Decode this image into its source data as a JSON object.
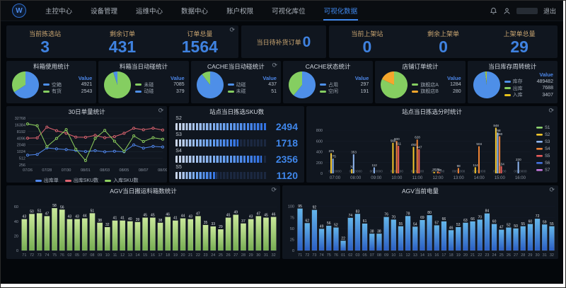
{
  "nav": {
    "items": [
      "主控中心",
      "设备管理",
      "运维中心",
      "数据中心",
      "账户权限",
      "可视化库位",
      "可视化数据"
    ],
    "active_index": 6,
    "logout_label": "退出"
  },
  "icons": {
    "refresh": "⟳"
  },
  "stats": {
    "picking": {
      "items": [
        {
          "label": "当前拣选站",
          "value": "3"
        },
        {
          "label": "剩余订单",
          "value": "431"
        },
        {
          "label": "订单总量",
          "value": "1564"
        }
      ]
    },
    "replenish": {
      "label": "当日待补货订单",
      "value": "0"
    },
    "shelving": {
      "items": [
        {
          "label": "当前上架站",
          "value": "0"
        },
        {
          "label": "剩余上架单",
          "value": "0"
        },
        {
          "label": "上架单总量",
          "value": "29"
        }
      ]
    }
  },
  "chart_data": [
    {
      "type": "pie",
      "title": "料箱使用统计",
      "value_header": "Value",
      "slices": [
        {
          "label": "空箱",
          "value": 4921,
          "color": "#4e8fe8"
        },
        {
          "label": "有货",
          "value": 2543,
          "color": "#85ce61"
        }
      ]
    },
    {
      "type": "pie",
      "title": "料箱当日动碰统计",
      "value_header": "Value",
      "slices": [
        {
          "label": "未碰",
          "value": 7085,
          "color": "#85ce61"
        },
        {
          "label": "动碰",
          "value": 379,
          "color": "#4e8fe8"
        }
      ]
    },
    {
      "type": "pie",
      "title": "CACHE当日动碰统计",
      "value_header": "Value",
      "has_refresh": true,
      "slices": [
        {
          "label": "动碰",
          "value": 437,
          "color": "#4e8fe8"
        },
        {
          "label": "未碰",
          "value": 51,
          "color": "#85ce61"
        }
      ]
    },
    {
      "type": "pie",
      "title": "CACHE状态统计",
      "value_header": "Value",
      "slices": [
        {
          "label": "占用",
          "value": 297,
          "color": "#4e8fe8"
        },
        {
          "label": "空闲",
          "value": 191,
          "color": "#85ce61"
        }
      ]
    },
    {
      "type": "pie",
      "title": "店铺订单统计",
      "value_header": "Value",
      "slices": [
        {
          "label": "旗舰店A",
          "value": 1284,
          "color": "#85ce61"
        },
        {
          "label": "旗舰店B",
          "value": 280,
          "color": "#f5a62c"
        }
      ]
    },
    {
      "type": "pie",
      "title": "当日库存周转统计",
      "value_header": "Value",
      "slices": [
        {
          "label": "库存",
          "value": 489482,
          "color": "#4e8fe8"
        },
        {
          "label": "出库",
          "value": 7688,
          "color": "#85ce61"
        },
        {
          "label": "入库",
          "value": 3407,
          "color": "#e8c21a"
        }
      ]
    },
    {
      "type": "line",
      "title": "30日单量统计",
      "scale": "log2",
      "y_ticks": [
        256,
        512,
        1024,
        2048,
        4096,
        8192,
        16384,
        32768
      ],
      "x": [
        "07/26",
        "07/27",
        "07/28",
        "07/29",
        "07/30",
        "07/31",
        "08/01",
        "08/02",
        "08/03",
        "08/04",
        "08/05",
        "08/06",
        "08/07",
        "08/08",
        "08/09"
      ],
      "x_tick_every": 2,
      "series": [
        {
          "name": "出库单",
          "color": "#5087ec",
          "values": [
            700,
            760,
            1500,
            1350,
            1250,
            1150,
            1024,
            1120,
            1000,
            1060,
            1000,
            2048,
            1450,
            1750,
            1650
          ]
        },
        {
          "name": "出库SKU数",
          "color": "#dd6470",
          "values": [
            4096,
            4200,
            13000,
            9000,
            6800,
            4600,
            4500,
            5500,
            4300,
            4800,
            6800,
            11500,
            9800,
            11500,
            9500
          ]
        },
        {
          "name": "入库SKU数",
          "color": "#8ed05e",
          "values": [
            18000,
            15000,
            1700,
            4000,
            10000,
            1300,
            400,
            4000,
            9200,
            3000,
            1050,
            5200,
            2900,
            4300,
            3700
          ]
        }
      ]
    },
    {
      "type": "hbar",
      "title": "站点当日拣选SKU数",
      "max": 2500,
      "bars": [
        {
          "label": "S2",
          "value": 2494
        },
        {
          "label": "S3",
          "value": 1718
        },
        {
          "label": "S4",
          "value": 2356
        },
        {
          "label": "S5",
          "value": 1120
        }
      ]
    },
    {
      "type": "grouped-bar",
      "title": "站点当日拣选分时统计",
      "categories": [
        "07:00",
        "08:00",
        "09:00",
        "10:00",
        "11:00",
        "12:00",
        "13:00",
        "14:00",
        "15:00",
        "16:00"
      ],
      "y_ticks": [
        0,
        200,
        400,
        600,
        800
      ],
      "ymax": 920,
      "series": [
        {
          "name": "S1",
          "color": "#8fd46f",
          "values": [
            0,
            0,
            0,
            0,
            0,
            0,
            0,
            0,
            0,
            0
          ]
        },
        {
          "name": "S2",
          "color": "#f3c62c",
          "values": [
            375,
            79,
            0,
            568,
            492,
            30,
            0,
            114,
            848,
            0
          ]
        },
        {
          "name": "S3",
          "color": "#8fb6f0",
          "values": [
            275,
            353,
            112,
            0,
            0,
            0,
            0,
            0,
            758,
            220
          ]
        },
        {
          "name": "S4",
          "color": "#ef8334",
          "values": [
            0,
            0,
            0,
            600,
            628,
            36,
            98,
            504,
            690,
            0
          ]
        },
        {
          "name": "S5",
          "color": "#e85b5b",
          "values": [
            0,
            0,
            0,
            511,
            447,
            20,
            0,
            0,
            134,
            0
          ]
        },
        {
          "name": "S6",
          "color": "#4472dd",
          "values": [
            0,
            0,
            0,
            0,
            0,
            0,
            0,
            0,
            0,
            0
          ]
        },
        {
          "name": "S7",
          "color": "#c678dd",
          "values": [
            0,
            0,
            0,
            0,
            0,
            0,
            0,
            0,
            0,
            0
          ]
        }
      ]
    },
    {
      "type": "bar",
      "title": "AGV当日搬运料箱数统计",
      "y_ticks": [
        0,
        20,
        40,
        60
      ],
      "ymax": 64,
      "grad": [
        "#c9e89a",
        "#76ad52"
      ],
      "categories": [
        "71",
        "72",
        "73",
        "74",
        "75",
        "76",
        "02",
        "05",
        "07",
        "08",
        "09",
        "10",
        "11",
        "12",
        "13",
        "14",
        "15",
        "16",
        "17",
        "18",
        "19",
        "20",
        "21",
        "22",
        "23",
        "24",
        "25",
        "26",
        "27",
        "28",
        "29",
        "30",
        "31",
        "32"
      ],
      "values": [
        43,
        50,
        51,
        47,
        58,
        56,
        43,
        43,
        44,
        51,
        38,
        32,
        41,
        41,
        40,
        39,
        45,
        45,
        38,
        46,
        41,
        44,
        43,
        47,
        35,
        33,
        29,
        45,
        49,
        37,
        43,
        47,
        45,
        46
      ]
    },
    {
      "type": "bar",
      "title": "AGV当前电量",
      "y_ticks": [
        0,
        25,
        50,
        75,
        100
      ],
      "ymax": 106,
      "grad": [
        "#63b5ea",
        "#2b5fc4"
      ],
      "categories": [
        "71",
        "72",
        "73",
        "74",
        "75",
        "76",
        "01",
        "02",
        "03",
        "05",
        "07",
        "08",
        "09",
        "10",
        "11",
        "12",
        "13",
        "14",
        "15",
        "16",
        "17",
        "18",
        "19",
        "20",
        "21",
        "22",
        "23",
        "24",
        "25",
        "26",
        "27",
        "28",
        "29",
        "30",
        "31",
        "32"
      ],
      "values": [
        95,
        62,
        92,
        49,
        56,
        52,
        22,
        74,
        83,
        61,
        38,
        38,
        76,
        70,
        55,
        78,
        54,
        69,
        80,
        57,
        66,
        46,
        53,
        63,
        66,
        70,
        84,
        60,
        47,
        52,
        50,
        55,
        60,
        72,
        59,
        55
      ]
    }
  ]
}
